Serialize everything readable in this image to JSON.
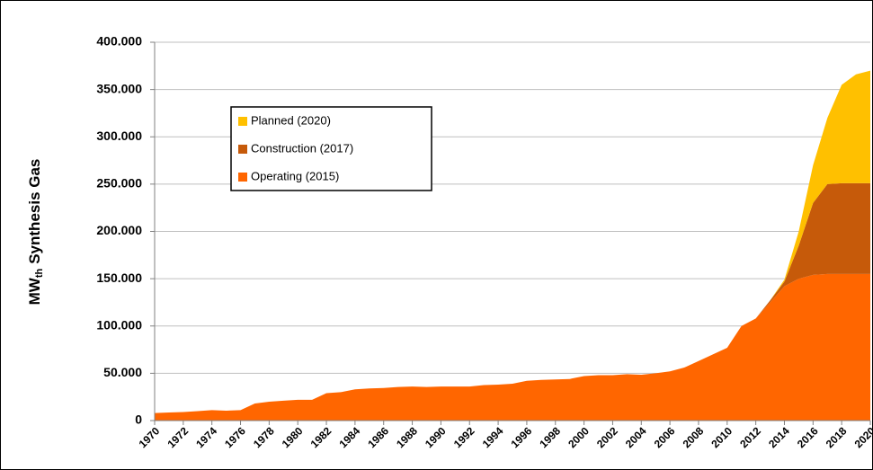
{
  "chart_data": {
    "type": "stacked-area",
    "ylabel": {
      "main": "MW",
      "sub": "th",
      "rest": "Synthesis Gas"
    },
    "x": [
      1970,
      1971,
      1972,
      1973,
      1974,
      1975,
      1976,
      1977,
      1978,
      1979,
      1980,
      1981,
      1982,
      1983,
      1984,
      1985,
      1986,
      1987,
      1988,
      1989,
      1990,
      1991,
      1992,
      1993,
      1994,
      1995,
      1996,
      1997,
      1998,
      1999,
      2000,
      2001,
      2002,
      2003,
      2004,
      2005,
      2006,
      2007,
      2008,
      2009,
      2010,
      2011,
      2012,
      2013,
      2014,
      2015,
      2016,
      2017,
      2018,
      2019,
      2020
    ],
    "xlim": [
      1970,
      2020
    ],
    "xticks": [
      1970,
      1972,
      1974,
      1976,
      1978,
      1980,
      1982,
      1984,
      1986,
      1988,
      1990,
      1992,
      1994,
      1996,
      1998,
      2000,
      2002,
      2004,
      2006,
      2008,
      2010,
      2012,
      2014,
      2016,
      2018,
      2020
    ],
    "ylim": [
      0,
      400000
    ],
    "yticks": [
      0,
      {
        "value": 50000,
        "label": "50.000"
      },
      {
        "value": 100000,
        "label": "100.000"
      },
      {
        "value": 150000,
        "label": "150.000"
      },
      {
        "value": 200000,
        "label": "200.000"
      },
      {
        "value": 250000,
        "label": "250.000"
      },
      {
        "value": 300000,
        "label": "300.000"
      },
      {
        "value": 350000,
        "label": "350.000"
      },
      {
        "value": 400000,
        "label": "400.000"
      }
    ],
    "grid": true,
    "legend": "upper left",
    "series": [
      {
        "name": "Operating (2015)",
        "color": "#ff6600",
        "values": [
          8000,
          8500,
          9000,
          10000,
          11000,
          10500,
          11000,
          18000,
          20000,
          21000,
          22000,
          22000,
          29000,
          30000,
          33000,
          34000,
          34500,
          35500,
          36000,
          35500,
          36000,
          36000,
          36000,
          37500,
          38000,
          39000,
          42000,
          43000,
          43500,
          44000,
          47000,
          48000,
          48000,
          49000,
          48500,
          50000,
          52000,
          56000,
          63000,
          70000,
          77000,
          100000,
          108000,
          125000,
          142000,
          150000,
          154000,
          155000,
          155000,
          155000,
          155000
        ]
      },
      {
        "name": "Construction (2017)",
        "color": "#c65a0a",
        "values": [
          0,
          0,
          0,
          0,
          0,
          0,
          0,
          0,
          0,
          0,
          0,
          0,
          0,
          0,
          0,
          0,
          0,
          0,
          0,
          0,
          0,
          0,
          0,
          0,
          0,
          0,
          0,
          0,
          0,
          0,
          0,
          0,
          0,
          0,
          0,
          0,
          0,
          0,
          0,
          0,
          0,
          0,
          0,
          2000,
          5000,
          35000,
          76000,
          95000,
          96000,
          96000,
          96000
        ]
      },
      {
        "name": "Planned (2020)",
        "color": "#ffc000",
        "values": [
          0,
          0,
          0,
          0,
          0,
          0,
          0,
          0,
          0,
          0,
          0,
          0,
          0,
          0,
          0,
          0,
          0,
          0,
          0,
          0,
          0,
          0,
          0,
          0,
          0,
          0,
          0,
          0,
          0,
          0,
          0,
          0,
          0,
          0,
          0,
          0,
          0,
          0,
          0,
          0,
          0,
          0,
          0,
          0,
          2000,
          15000,
          40000,
          70000,
          104000,
          115000,
          119000
        ]
      }
    ]
  }
}
